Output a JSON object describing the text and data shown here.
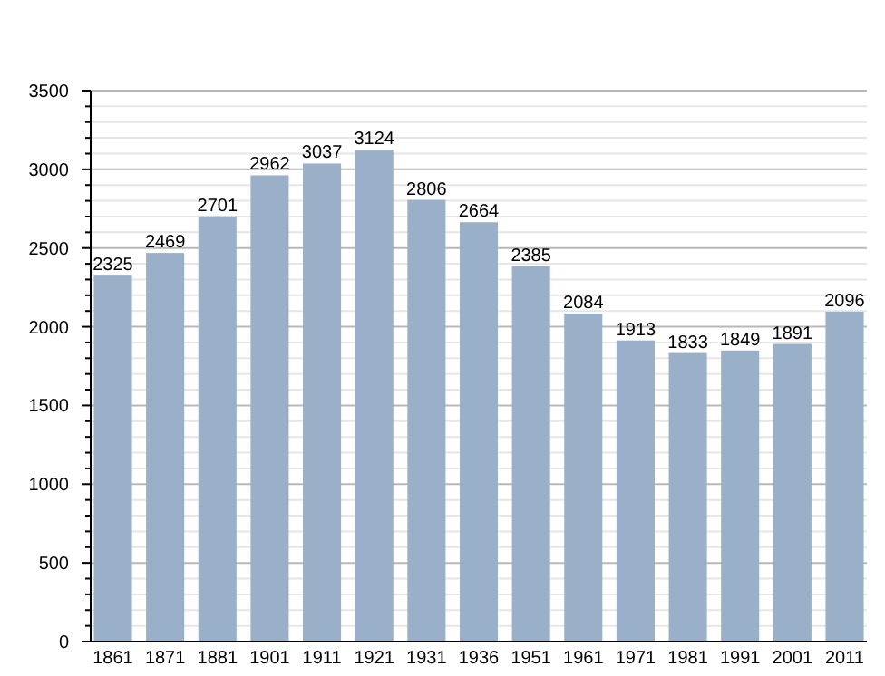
{
  "chart_data": {
    "type": "bar",
    "categories": [
      "1861",
      "1871",
      "1881",
      "1901",
      "1911",
      "1921",
      "1931",
      "1936",
      "1951",
      "1961",
      "1971",
      "1981",
      "1991",
      "2001",
      "2011"
    ],
    "values": [
      2325,
      2469,
      2701,
      2962,
      3037,
      3124,
      2806,
      2664,
      2385,
      2084,
      1913,
      1833,
      1849,
      1891,
      2096
    ],
    "color": "#9ab0c9",
    "ylim": [
      0,
      3500
    ],
    "yticks": [
      0,
      {
        "value": 100,
        "label": null
      },
      {
        "value": 200,
        "label": null
      },
      {
        "value": 300,
        "label": null
      },
      {
        "value": 400,
        "label": null
      },
      500,
      {
        "value": 600,
        "label": null
      },
      {
        "value": 700,
        "label": null
      },
      {
        "value": 800,
        "label": null
      },
      {
        "value": 900,
        "label": null
      },
      1000,
      {
        "value": 1100,
        "label": null
      },
      {
        "value": 1200,
        "label": null
      },
      {
        "value": 1300,
        "label": null
      },
      {
        "value": 1400,
        "label": null
      },
      1500,
      {
        "value": 1600,
        "label": null
      },
      {
        "value": 1700,
        "label": null
      },
      {
        "value": 1800,
        "label": null
      },
      {
        "value": 1900,
        "label": null
      },
      2000,
      {
        "value": 2100,
        "label": null
      },
      {
        "value": 2200,
        "label": null
      },
      {
        "value": 2300,
        "label": null
      },
      {
        "value": 2400,
        "label": null
      },
      2500,
      {
        "value": 2600,
        "label": null
      },
      {
        "value": 2700,
        "label": null
      },
      {
        "value": 2800,
        "label": null
      },
      {
        "value": 2900,
        "label": null
      },
      3000,
      {
        "value": 3100,
        "label": null
      },
      {
        "value": 3200,
        "label": null
      },
      {
        "value": 3300,
        "label": null
      },
      {
        "value": 3400,
        "label": null
      },
      3500
    ],
    "grid": true,
    "data_labels": true
  }
}
